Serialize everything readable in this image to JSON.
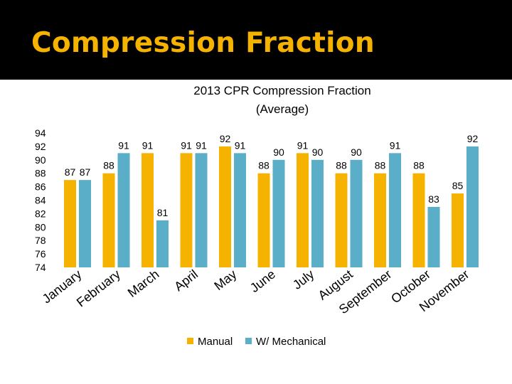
{
  "slide": {
    "title": "Compression Fraction"
  },
  "colors": {
    "manual": "#f5b300",
    "mechanical": "#5aaec8",
    "title": "#f5b300",
    "background": "#ffffff",
    "titleBar": "#000000"
  },
  "chart_data": {
    "type": "bar",
    "title": "2013 CPR Compression Fraction",
    "subtitle": "(Average)",
    "categories": [
      "January",
      "February",
      "March",
      "April",
      "May",
      "June",
      "July",
      "August",
      "September",
      "October",
      "November"
    ],
    "series": [
      {
        "name": "Manual",
        "values": [
          87,
          88,
          91,
          91,
          92,
          88,
          91,
          88,
          88,
          88,
          85
        ]
      },
      {
        "name": "W/ Mechanical",
        "values": [
          87,
          91,
          81,
          91,
          91,
          90,
          90,
          90,
          91,
          83,
          92
        ]
      }
    ],
    "ylim": [
      74,
      94
    ],
    "yticks": [
      94,
      92,
      90,
      88,
      86,
      84,
      82,
      80,
      78,
      76,
      74
    ],
    "legend": "bottom",
    "grid": false,
    "data_labels": true
  }
}
